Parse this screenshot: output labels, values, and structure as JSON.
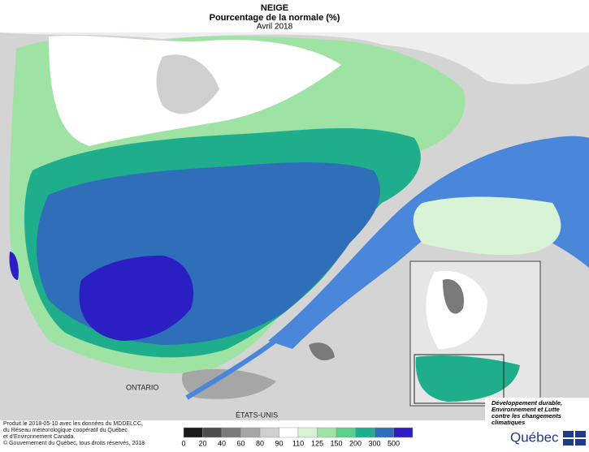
{
  "header": {
    "title": "NEIGE",
    "subtitle": "Pourcentage de la normale (%)",
    "period": "Avril 2018"
  },
  "map": {
    "labels": {
      "ontario": "ONTARIO",
      "usa": "ÉTATS-UNIS"
    }
  },
  "legend": {
    "items": [
      {
        "value": 0,
        "color": "#1a1a1a"
      },
      {
        "value": 20,
        "color": "#4d4d4d"
      },
      {
        "value": 40,
        "color": "#7a7a7a"
      },
      {
        "value": 60,
        "color": "#a6a6a6"
      },
      {
        "value": 80,
        "color": "#cfcfcf"
      },
      {
        "value": 90,
        "color": "#ffffff"
      },
      {
        "value": 110,
        "color": "#d7f2d4"
      },
      {
        "value": 125,
        "color": "#9fe3a4"
      },
      {
        "value": 150,
        "color": "#5ccf8a"
      },
      {
        "value": 200,
        "color": "#1fae8c"
      },
      {
        "value": 300,
        "color": "#2f6fba"
      },
      {
        "value": 500,
        "color": "#2b1fc4"
      }
    ]
  },
  "credits": [
    "Produit le 2018-05-10 avec les données du MDDELCC,",
    "du Réseau météorologique coopératif du Québec",
    "et d'Environnement Canada.",
    "© Gouvernement du Québec, tous droits réservés, 2018"
  ],
  "logo": {
    "ministry": [
      "Développement durable,",
      "Environnement et Lutte",
      "contre les changements",
      "climatiques"
    ],
    "name": "Québec"
  }
}
